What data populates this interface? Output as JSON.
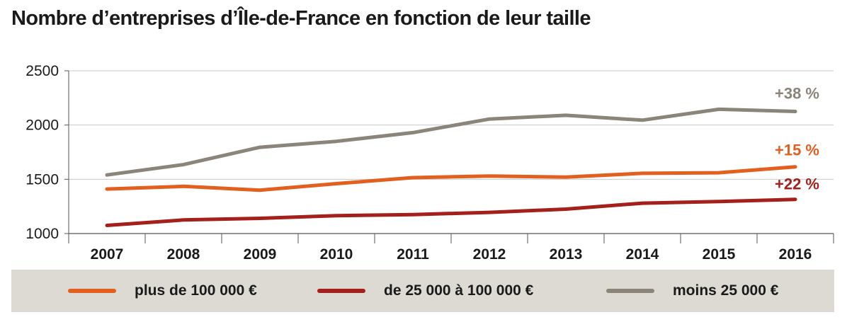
{
  "title": "Nombre d’entreprises d’Île-de-France en fonction de leur taille",
  "chart_data": {
    "type": "line",
    "title": "Nombre d’entreprises d’Île-de-France en fonction de leur taille",
    "x": [
      "2007",
      "2008",
      "2009",
      "2010",
      "2011",
      "2012",
      "2013",
      "2014",
      "2015",
      "2016"
    ],
    "ylim": [
      1000,
      2500
    ],
    "yticks": [
      "1000",
      "1500",
      "2000",
      "2500"
    ],
    "grid": "horizontal",
    "legend_position": "bottom",
    "series": [
      {
        "name": "plus de 100 000 €",
        "color": "#e35f1e",
        "values": [
          1410,
          1435,
          1400,
          1460,
          1515,
          1530,
          1520,
          1555,
          1560,
          1615
        ],
        "annotation": "+15 %"
      },
      {
        "name": "de 25 000 à 100 000 €",
        "color": "#a3201c",
        "values": [
          1075,
          1125,
          1140,
          1165,
          1175,
          1195,
          1225,
          1280,
          1295,
          1315
        ],
        "annotation": "+22 %"
      },
      {
        "name": "moins 25 000 €",
        "color": "#8a8479",
        "values": [
          1540,
          1635,
          1795,
          1850,
          1930,
          2055,
          2090,
          2045,
          2145,
          2125
        ],
        "annotation": "+38 %"
      }
    ]
  }
}
